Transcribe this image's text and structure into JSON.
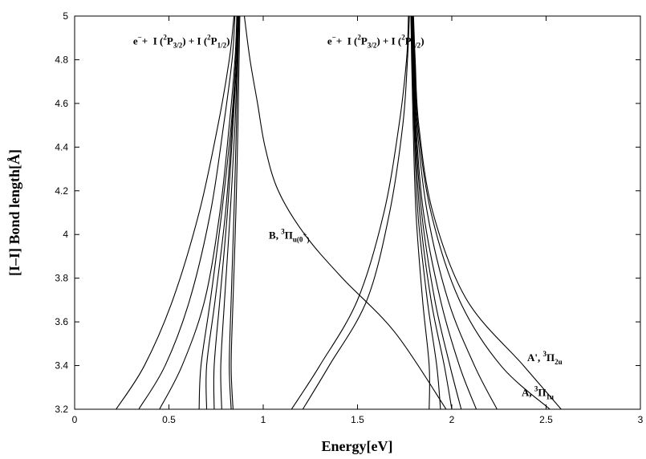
{
  "chart_data": {
    "type": "line",
    "title": "",
    "xlabel": "Energy[eV]",
    "ylabel": "[I–I] Bond length[Å]",
    "xlim": [
      0,
      3
    ],
    "ylim": [
      3.2,
      5
    ],
    "x_ticks": [
      "0",
      "0.5",
      "1",
      "1.5",
      "2",
      "2.5",
      "3"
    ],
    "y_ticks": [
      "3.2",
      "3.4",
      "3.6",
      "3.8",
      "4",
      "4.2",
      "4.4",
      "4.6",
      "4.8",
      "5"
    ],
    "grid": false,
    "legend": "none",
    "annotations": [
      {
        "id": "asym1",
        "parts": [
          "e",
          "−",
          "+",
          "I (",
          "2",
          "P",
          "3/2",
          ") + I (",
          "2",
          "P",
          "1/2",
          ")"
        ],
        "x": 0.31,
        "y": 4.87
      },
      {
        "id": "asym2",
        "parts": [
          "e",
          "−",
          "+",
          "I (",
          "2",
          "P",
          "3/2",
          ") + I (",
          "2",
          "P",
          "3/2",
          ")"
        ],
        "x": 1.34,
        "y": 4.87
      },
      {
        "id": "B",
        "parts": [
          "B, ",
          "3",
          "Π",
          "u",
          "(0",
          "+",
          ")"
        ],
        "x": 1.03,
        "y": 3.98
      },
      {
        "id": "Aprime",
        "parts": [
          "A', ",
          "3",
          "Π",
          "2u"
        ],
        "x": 2.4,
        "y": 3.42
      },
      {
        "id": "A",
        "parts": [
          "A, ",
          "3",
          "Π",
          "1u"
        ],
        "x": 2.37,
        "y": 3.26
      }
    ],
    "series": [
      {
        "x": [
          0.22,
          0.37,
          0.52,
          0.66,
          0.76,
          0.82,
          0.845
        ],
        "y": [
          3.2,
          3.4,
          3.7,
          4.1,
          4.5,
          4.8,
          5.0
        ]
      },
      {
        "x": [
          0.34,
          0.48,
          0.61,
          0.72,
          0.79,
          0.835,
          0.85
        ],
        "y": [
          3.2,
          3.4,
          3.7,
          4.1,
          4.5,
          4.8,
          5.0
        ]
      },
      {
        "x": [
          0.45,
          0.57,
          0.69,
          0.77,
          0.82,
          0.85,
          0.86
        ],
        "y": [
          3.2,
          3.4,
          3.7,
          4.1,
          4.5,
          4.8,
          5.0
        ]
      },
      {
        "x": [
          0.66,
          0.67,
          0.72,
          0.78,
          0.83,
          0.855,
          0.865
        ],
        "y": [
          3.2,
          3.4,
          3.7,
          4.1,
          4.5,
          4.8,
          5.0
        ]
      },
      {
        "x": [
          0.7,
          0.7,
          0.745,
          0.8,
          0.835,
          0.855,
          0.865
        ],
        "y": [
          3.2,
          3.4,
          3.7,
          4.1,
          4.5,
          4.8,
          5.0
        ]
      },
      {
        "x": [
          0.74,
          0.74,
          0.77,
          0.81,
          0.84,
          0.86,
          0.868
        ],
        "y": [
          3.2,
          3.4,
          3.7,
          4.1,
          4.5,
          4.8,
          5.0
        ]
      },
      {
        "x": [
          0.78,
          0.775,
          0.795,
          0.825,
          0.85,
          0.862,
          0.87
        ],
        "y": [
          3.2,
          3.4,
          3.7,
          4.1,
          4.5,
          4.8,
          5.0
        ]
      },
      {
        "x": [
          0.83,
          0.82,
          0.83,
          0.845,
          0.858,
          0.866,
          0.872
        ],
        "y": [
          3.2,
          3.4,
          3.7,
          4.1,
          4.5,
          4.8,
          5.0
        ]
      },
      {
        "x": [
          0.84,
          0.83,
          0.84,
          0.855,
          0.866,
          0.872,
          0.876
        ],
        "y": [
          3.2,
          3.4,
          3.7,
          4.1,
          4.5,
          4.8,
          5.0
        ]
      },
      {
        "x": [
          0.9,
          0.93,
          0.97,
          1.01,
          1.08,
          1.22,
          1.42,
          1.7,
          1.97
        ],
        "y": [
          5.0,
          4.8,
          4.6,
          4.4,
          4.2,
          4.0,
          3.8,
          3.55,
          3.2
        ]
      },
      {
        "x": [
          1.15,
          1.3,
          1.5,
          1.64,
          1.72,
          1.76,
          1.77
        ],
        "y": [
          3.2,
          3.4,
          3.7,
          4.1,
          4.5,
          4.8,
          5.0
        ]
      },
      {
        "x": [
          1.21,
          1.35,
          1.55,
          1.67,
          1.74,
          1.765,
          1.775
        ],
        "y": [
          3.2,
          3.4,
          3.7,
          4.1,
          4.5,
          4.8,
          5.0
        ]
      },
      {
        "x": [
          1.88,
          1.88,
          1.845,
          1.81,
          1.795,
          1.787,
          1.783
        ],
        "y": [
          3.2,
          3.4,
          3.7,
          4.1,
          4.5,
          4.8,
          5.0
        ]
      },
      {
        "x": [
          1.94,
          1.92,
          1.87,
          1.82,
          1.8,
          1.79,
          1.785
        ],
        "y": [
          3.2,
          3.4,
          3.7,
          4.1,
          4.5,
          4.8,
          5.0
        ]
      },
      {
        "x": [
          2.0,
          1.96,
          1.89,
          1.83,
          1.803,
          1.792,
          1.787
        ],
        "y": [
          3.2,
          3.4,
          3.7,
          4.1,
          4.5,
          4.8,
          5.0
        ]
      },
      {
        "x": [
          2.05,
          1.99,
          1.91,
          1.84,
          1.806,
          1.794,
          1.789
        ],
        "y": [
          3.2,
          3.4,
          3.7,
          4.1,
          4.5,
          4.8,
          5.0
        ]
      },
      {
        "x": [
          2.13,
          2.04,
          1.94,
          1.85,
          1.81,
          1.797,
          1.791
        ],
        "y": [
          3.2,
          3.4,
          3.7,
          4.1,
          4.5,
          4.8,
          5.0
        ]
      },
      {
        "x": [
          2.24,
          2.12,
          1.98,
          1.87,
          1.815,
          1.8,
          1.793
        ],
        "y": [
          3.2,
          3.4,
          3.7,
          4.1,
          4.5,
          4.8,
          5.0
        ]
      },
      {
        "x": [
          2.52,
          2.26,
          2.04,
          1.89,
          1.82,
          1.803,
          1.795
        ],
        "y": [
          3.2,
          3.4,
          3.7,
          4.1,
          4.5,
          4.8,
          5.0
        ]
      },
      {
        "x": [
          2.58,
          2.38,
          2.08,
          1.9,
          1.825,
          1.806,
          1.797
        ],
        "y": [
          3.2,
          3.4,
          3.7,
          4.1,
          4.5,
          4.8,
          5.0
        ]
      }
    ]
  }
}
